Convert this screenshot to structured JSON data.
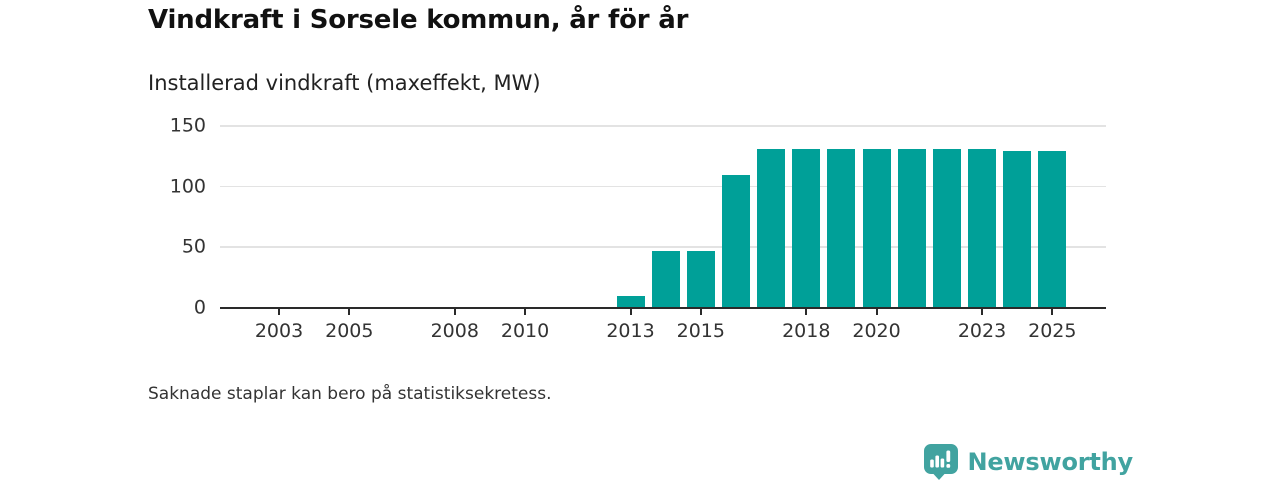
{
  "header": {
    "title": "Vindkraft i Sorsele kommun, år för år",
    "subtitle": "Installerad vindkraft (maxeffekt, MW)"
  },
  "footnote": "Saknade staplar kan bero på statistiksekretess.",
  "brand": {
    "name": "Newsworthy",
    "icon": "bar-chart-speech-bubble-icon",
    "color": "#41a3a0"
  },
  "colors": {
    "bar": "#00a098",
    "axis": "#2a2a2a",
    "grid": "#e3e3e3",
    "tick_text": "#333333",
    "title_text": "#111111"
  },
  "chart_data": {
    "type": "bar",
    "title": "Vindkraft i Sorsele kommun, år för år",
    "subtitle": "Installerad vindkraft (maxeffekt, MW)",
    "unit": "MW",
    "categories": [
      2013,
      2014,
      2015,
      2016,
      2017,
      2018,
      2019,
      2020,
      2021,
      2022,
      2023,
      2024,
      2025
    ],
    "values": [
      10,
      47,
      47,
      110,
      131,
      131,
      131,
      131,
      131,
      131,
      131,
      129,
      129
    ],
    "missing_years_shown_empty": [
      2002,
      2003,
      2004,
      2005,
      2006,
      2007,
      2008,
      2009,
      2010,
      2011,
      2012
    ],
    "xticks": [
      2003,
      2005,
      2008,
      2010,
      2013,
      2015,
      2018,
      2020,
      2023,
      2025
    ],
    "yticks": [
      0,
      50,
      100,
      150
    ],
    "ylim": [
      0,
      150
    ],
    "xlabel": "",
    "ylabel": "Installerad vindkraft (maxeffekt, MW)",
    "grid": "horizontal",
    "legend": "none",
    "annotation": "Saknade staplar kan bero på statistiksekretess."
  }
}
